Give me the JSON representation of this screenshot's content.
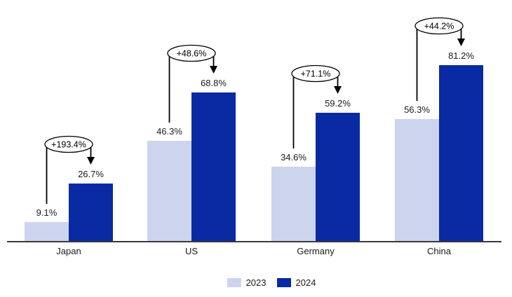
{
  "chart_data": {
    "type": "bar",
    "title": "",
    "categories": [
      "Japan",
      "US",
      "Germany",
      "China"
    ],
    "series": [
      {
        "name": "2023",
        "color": "#cdd4ee",
        "values": [
          9.1,
          46.3,
          34.6,
          56.3
        ],
        "labels": [
          "9.1%",
          "46.3%",
          "34.6%",
          "56.3%"
        ]
      },
      {
        "name": "2024",
        "color": "#0a2aa3",
        "values": [
          26.7,
          68.8,
          59.2,
          81.2
        ],
        "labels": [
          "26.7%",
          "68.8%",
          "59.2%",
          "81.2%"
        ]
      }
    ],
    "growth_annotations": [
      "+193.4%",
      "+48.6%",
      "+71.1%",
      "+44.2%"
    ],
    "ylim": [
      0,
      100
    ],
    "unit": "%",
    "grid": false,
    "legend_position": "bottom-center"
  },
  "legend": {
    "items": [
      {
        "label": "2023",
        "color": "#cdd4ee"
      },
      {
        "label": "2024",
        "color": "#0a2aa3"
      }
    ]
  },
  "colors": {
    "bar_2023": "#cdd4ee",
    "bar_2024": "#0a2aa3",
    "annotation_stroke": "#000000",
    "axis": "#3a3a3a",
    "text": "#1a1a1a",
    "background": "#ffffff"
  }
}
